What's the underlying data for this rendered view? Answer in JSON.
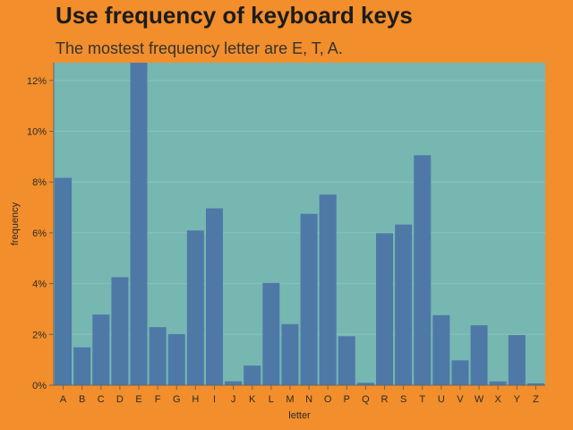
{
  "header": {
    "title": "Use frequency of keyboard keys",
    "subtitle": "The mostest frequency letter are E, T, A."
  },
  "colors": {
    "background": "#f28e2b",
    "plot_background": "#76b7b2",
    "bar": "#4e79a7",
    "grid": "#8cc1bd",
    "axis": "#666666"
  },
  "chart_data": {
    "type": "bar",
    "title": "Use frequency of keyboard keys",
    "subtitle": "The mostest frequency letter are E, T, A.",
    "xlabel": "letter",
    "ylabel": "frequency",
    "categories": [
      "A",
      "B",
      "C",
      "D",
      "E",
      "F",
      "G",
      "H",
      "I",
      "J",
      "K",
      "L",
      "M",
      "N",
      "O",
      "P",
      "Q",
      "R",
      "S",
      "T",
      "U",
      "V",
      "W",
      "X",
      "Y",
      "Z"
    ],
    "values": [
      0.08167,
      0.01492,
      0.02782,
      0.04253,
      0.12702,
      0.02288,
      0.02015,
      0.06094,
      0.06966,
      0.00153,
      0.00772,
      0.04025,
      0.02406,
      0.06749,
      0.07507,
      0.01929,
      0.00095,
      0.05987,
      0.06327,
      0.09056,
      0.02758,
      0.00978,
      0.0236,
      0.0015,
      0.01974,
      0.00074
    ],
    "ylim": [
      0,
      0.127
    ],
    "yticks": [
      0,
      0.02,
      0.04,
      0.06,
      0.08,
      0.1,
      0.12
    ],
    "ytick_labels": [
      "0%",
      "2%",
      "4%",
      "6%",
      "8%",
      "10%",
      "12%"
    ],
    "grid": true,
    "legend": "none"
  }
}
